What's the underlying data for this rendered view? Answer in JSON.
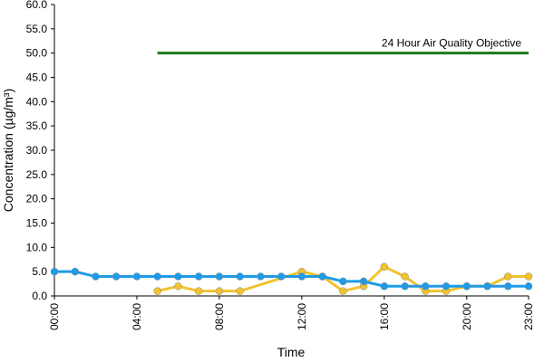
{
  "chart_data": {
    "type": "line",
    "x_label": "Time",
    "y_label": "Concentration (µg/m³)",
    "xlim": [
      0,
      23
    ],
    "xticks": [
      {
        "value": 0,
        "label": "00:00"
      },
      {
        "value": 4,
        "label": "04:00"
      },
      {
        "value": 8,
        "label": "08:00"
      },
      {
        "value": 12,
        "label": "12:00"
      },
      {
        "value": 16,
        "label": "16:00"
      },
      {
        "value": 20,
        "label": "20:00"
      },
      {
        "value": 23,
        "label": "23:00"
      }
    ],
    "ylim": [
      0,
      60
    ],
    "yticks": [
      {
        "value": 0,
        "label": "0.0"
      },
      {
        "value": 5,
        "label": "5.0"
      },
      {
        "value": 10,
        "label": "10.0"
      },
      {
        "value": 15,
        "label": "15.0"
      },
      {
        "value": 20,
        "label": "20.0"
      },
      {
        "value": 25,
        "label": "25.0"
      },
      {
        "value": 30,
        "label": "30.0"
      },
      {
        "value": 35,
        "label": "35.0"
      },
      {
        "value": 40,
        "label": "40.0"
      },
      {
        "value": 45,
        "label": "45.0"
      },
      {
        "value": 50,
        "label": "50.0"
      },
      {
        "value": 55,
        "label": "55.0"
      },
      {
        "value": 60,
        "label": "60.0"
      }
    ],
    "series": [
      {
        "color": "#f0c330",
        "x": [
          5,
          6,
          7,
          8,
          9,
          12,
          13,
          14,
          15,
          16,
          17,
          18,
          19,
          20,
          21,
          22,
          23
        ],
        "values": [
          1,
          2,
          1,
          1,
          1,
          5,
          4,
          1,
          2,
          6,
          4,
          1,
          1,
          2,
          2,
          4,
          4
        ]
      },
      {
        "color": "#1e9be8",
        "x": [
          0,
          1,
          2,
          3,
          4,
          5,
          6,
          7,
          8,
          9,
          10,
          11,
          12,
          13,
          14,
          15,
          16,
          17,
          18,
          19,
          20,
          21,
          22,
          23
        ],
        "values": [
          5,
          5,
          4,
          4,
          4,
          4,
          4,
          4,
          4,
          4,
          4,
          4,
          4,
          4,
          3,
          3,
          2,
          2,
          2,
          2,
          2,
          2,
          2,
          2
        ]
      }
    ],
    "objective": {
      "text": "24 Hour Air Quality Objective",
      "value": 50,
      "x": [
        5,
        23
      ],
      "color": "#1a7a1a"
    }
  }
}
